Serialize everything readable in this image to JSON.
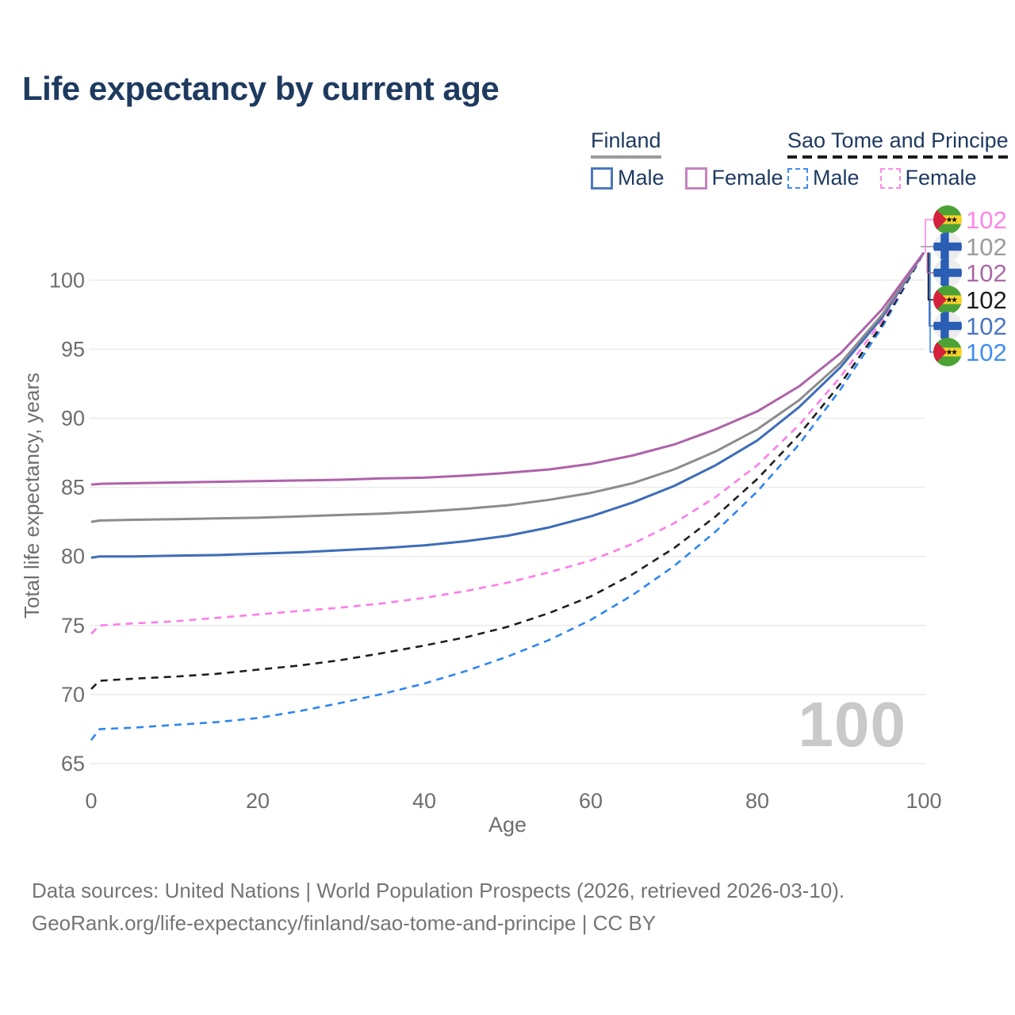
{
  "title": "Life expectancy by current age",
  "legend": {
    "groups": [
      {
        "name": "Finland",
        "underline_style": "solid",
        "underline_color": "#9a9a9a",
        "items": [
          {
            "label": "Male",
            "swatch_color": "#4a78bb",
            "dashed": false
          },
          {
            "label": "Female",
            "swatch_color": "#c383bf",
            "dashed": false
          }
        ]
      },
      {
        "name": "Sao Tome and Principe",
        "underline_style": "dashed",
        "underline_color": "#1c1c1c",
        "items": [
          {
            "label": "Male",
            "swatch_color": "#3f8df2",
            "dashed": true
          },
          {
            "label": "Female",
            "swatch_color": "#ff8ae4",
            "dashed": true
          }
        ]
      }
    ]
  },
  "chart_data": {
    "type": "line",
    "title": "Life expectancy by current age",
    "xlabel": "Age",
    "ylabel": "Total life expectancy, years",
    "xlim": [
      0,
      100
    ],
    "ylim": [
      65,
      103
    ],
    "xticks": [
      0,
      20,
      40,
      60,
      80,
      100
    ],
    "yticks": [
      65,
      70,
      75,
      80,
      85,
      90,
      95,
      100
    ],
    "grid": true,
    "watermark": "100",
    "x": [
      0,
      1,
      5,
      10,
      15,
      20,
      25,
      30,
      35,
      40,
      45,
      50,
      55,
      60,
      65,
      70,
      75,
      80,
      85,
      90,
      95,
      100
    ],
    "series": [
      {
        "name": "Finland Female",
        "country": "Finland",
        "sex": "Female",
        "color": "#ae62a9",
        "dash": false,
        "values": [
          85.2,
          85.25,
          85.3,
          85.35,
          85.4,
          85.45,
          85.5,
          85.55,
          85.65,
          85.7,
          85.85,
          86.05,
          86.3,
          86.7,
          87.3,
          88.1,
          89.2,
          90.5,
          92.3,
          94.7,
          97.9,
          102
        ]
      },
      {
        "name": "Finland Total",
        "country": "Finland",
        "sex": "Both",
        "color": "#8c8c8c",
        "dash": false,
        "values": [
          82.5,
          82.6,
          82.65,
          82.7,
          82.75,
          82.8,
          82.9,
          83.0,
          83.1,
          83.25,
          83.45,
          83.7,
          84.1,
          84.6,
          85.3,
          86.3,
          87.6,
          89.2,
          91.3,
          94.0,
          97.5,
          102
        ]
      },
      {
        "name": "Finland Male",
        "country": "Finland",
        "sex": "Male",
        "color": "#3d6db8",
        "dash": false,
        "values": [
          79.9,
          80.0,
          80.0,
          80.05,
          80.1,
          80.2,
          80.3,
          80.45,
          80.6,
          80.8,
          81.1,
          81.5,
          82.1,
          82.9,
          83.9,
          85.1,
          86.6,
          88.4,
          90.8,
          93.7,
          97.3,
          102
        ]
      },
      {
        "name": "Sao Tome and Principe Female",
        "country": "Sao Tome and Principe",
        "sex": "Female",
        "color": "#ff7ce8",
        "dash": true,
        "values": [
          74.4,
          75.0,
          75.15,
          75.3,
          75.55,
          75.8,
          76.05,
          76.3,
          76.6,
          77.0,
          77.5,
          78.1,
          78.85,
          79.7,
          80.9,
          82.4,
          84.3,
          86.6,
          89.5,
          93.0,
          97.1,
          102
        ]
      },
      {
        "name": "Sao Tome and Principe Total",
        "country": "Sao Tome and Principe",
        "sex": "Both",
        "color": "#1f1f1f",
        "dash": true,
        "values": [
          70.4,
          71.0,
          71.15,
          71.3,
          71.5,
          71.8,
          72.1,
          72.5,
          73.0,
          73.55,
          74.15,
          74.9,
          75.9,
          77.1,
          78.7,
          80.6,
          82.9,
          85.6,
          88.8,
          92.5,
          96.8,
          102
        ]
      },
      {
        "name": "Sao Tome and Principe Male",
        "country": "Sao Tome and Principe",
        "sex": "Male",
        "color": "#2e86f0",
        "dash": true,
        "values": [
          66.7,
          67.5,
          67.6,
          67.8,
          68.0,
          68.3,
          68.8,
          69.4,
          70.05,
          70.8,
          71.7,
          72.75,
          73.95,
          75.4,
          77.2,
          79.3,
          81.8,
          84.7,
          88.1,
          92.1,
          96.6,
          102
        ]
      }
    ],
    "end_labels": [
      {
        "value": "102",
        "flag": "sao-tome-and-principe",
        "color": "#ff85e6",
        "series": "Sao Tome and Principe Female"
      },
      {
        "value": "102",
        "flag": "finland",
        "color": "#9a9a9a",
        "series": "Finland Total"
      },
      {
        "value": "102",
        "flag": "finland",
        "color": "#a96aa6",
        "series": "Finland Female"
      },
      {
        "value": "102",
        "flag": "sao-tome-and-principe",
        "color": "#1c1c1c",
        "series": "Sao Tome and Principe Total"
      },
      {
        "value": "102",
        "flag": "finland",
        "color": "#4a74c0",
        "series": "Finland Male"
      },
      {
        "value": "102",
        "flag": "sao-tome-and-principe",
        "color": "#3f8df2",
        "series": "Sao Tome and Principe Male"
      }
    ]
  },
  "footer": {
    "line1": "Data sources: United Nations | World Population Prospects (2026, retrieved 2026-03-10).",
    "line2": "GeoRank.org/life-expectancy/finland/sao-tome-and-principe | CC BY"
  }
}
